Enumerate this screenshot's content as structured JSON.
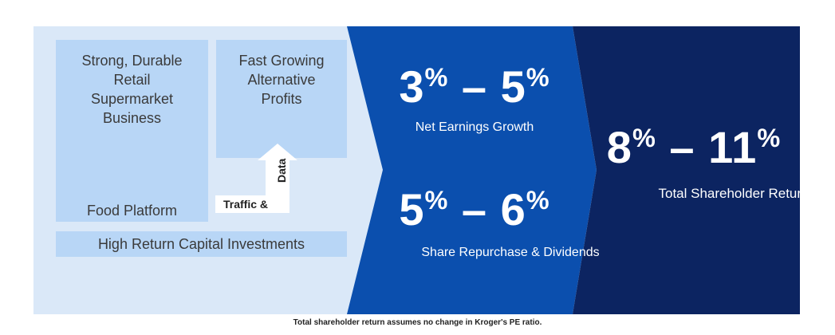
{
  "left": {
    "food_box_title": "Strong, Durable Retail Supermarket Business",
    "food_platform_label": "Food Platform",
    "alt_box_title": "Fast Growing Alternative Profits",
    "traffic_label": "Traffic &",
    "data_label": "Data",
    "capital_label": "High Return Capital Investments"
  },
  "middle": {
    "earnings_range": {
      "low": "3",
      "high": "5",
      "unit": "%",
      "sep": "–"
    },
    "earnings_label": "Net Earnings Growth",
    "repurchase_range": {
      "low": "5",
      "high": "6",
      "unit": "%",
      "sep": "–"
    },
    "repurchase_label": "Share Repurchase & Dividends"
  },
  "right": {
    "tsr_range": {
      "low": "8",
      "high": "11",
      "unit": "%",
      "sep": "–"
    },
    "tsr_label": "Total Shareholder Return"
  },
  "footnote": "Total shareholder return assumes no change in Kroger's PE ratio.",
  "colors": {
    "light_bg": "#dae8f8",
    "box": "#b8d6f6",
    "mid_blue": "#0b4fae",
    "dark_navy": "#0c2461"
  }
}
